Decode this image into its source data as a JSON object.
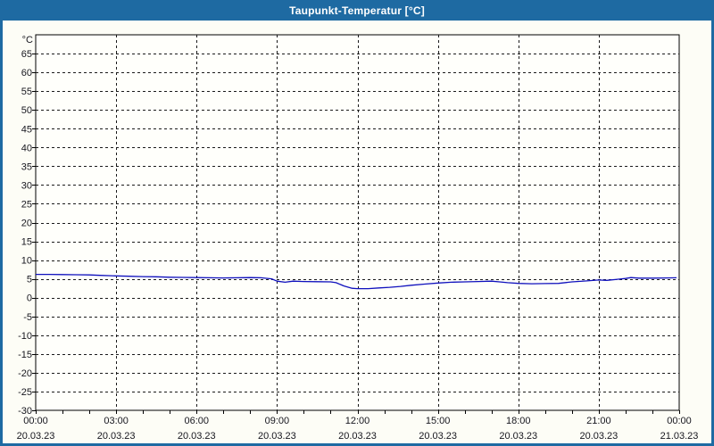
{
  "window": {
    "title": "Taupunkt-Temperatur [°C]"
  },
  "colors": {
    "titlebar_bg": "#1e6aa2",
    "frame": "#1e6aa2",
    "title_text": "#ffffff",
    "content_bg": "#fdfdf6",
    "plot_bg": "#fffffb",
    "plot_border": "#000000",
    "gridline": "#1a1a1a",
    "axis_text": "#16161e",
    "series_line": "#0f10bd"
  },
  "chart_data": {
    "type": "line",
    "title": "Taupunkt-Temperatur [°C]",
    "ylabel": "°C",
    "xlabel": "",
    "ylim": [
      -30,
      70
    ],
    "y_tick_step": 5,
    "y_tick_labels": [
      "65",
      "60",
      "55",
      "50",
      "45",
      "40",
      "35",
      "30",
      "25",
      "20",
      "15",
      "10",
      "5",
      "0",
      "-5",
      "-10",
      "-15",
      "-20",
      "-25",
      "-30"
    ],
    "grid": "dashed",
    "legend_position": "none",
    "x_axis": {
      "hours_span": 24,
      "minor_tick_every_hours": 1,
      "major_every_hours": 3,
      "major_ticks": [
        {
          "time": "00:00",
          "date": "20.03.23"
        },
        {
          "time": "03:00",
          "date": "20.03.23"
        },
        {
          "time": "06:00",
          "date": "20.03.23"
        },
        {
          "time": "09:00",
          "date": "20.03.23"
        },
        {
          "time": "12:00",
          "date": "20.03.23"
        },
        {
          "time": "15:00",
          "date": "20.03.23"
        },
        {
          "time": "18:00",
          "date": "20.03.23"
        },
        {
          "time": "21:00",
          "date": "20.03.23"
        },
        {
          "time": "00:00",
          "date": "21.03.23"
        }
      ]
    },
    "series": [
      {
        "name": "Taupunkt-Temperatur",
        "unit": "°C",
        "color": "#0f10bd",
        "points": [
          [
            0.0,
            6.2
          ],
          [
            0.5,
            6.2
          ],
          [
            1.0,
            6.15
          ],
          [
            1.5,
            6.1
          ],
          [
            2.0,
            6.05
          ],
          [
            2.4,
            5.95
          ],
          [
            3.0,
            5.8
          ],
          [
            3.5,
            5.7
          ],
          [
            4.0,
            5.6
          ],
          [
            4.5,
            5.55
          ],
          [
            5.0,
            5.45
          ],
          [
            5.5,
            5.4
          ],
          [
            6.0,
            5.35
          ],
          [
            6.5,
            5.3
          ],
          [
            7.0,
            5.25
          ],
          [
            7.5,
            5.3
          ],
          [
            8.0,
            5.35
          ],
          [
            8.4,
            5.3
          ],
          [
            8.8,
            5.0
          ],
          [
            9.0,
            4.4
          ],
          [
            9.3,
            4.1
          ],
          [
            9.6,
            4.4
          ],
          [
            10.0,
            4.3
          ],
          [
            10.5,
            4.25
          ],
          [
            11.0,
            4.2
          ],
          [
            11.2,
            4.0
          ],
          [
            11.5,
            3.1
          ],
          [
            11.8,
            2.5
          ],
          [
            12.0,
            2.4
          ],
          [
            12.4,
            2.4
          ],
          [
            12.8,
            2.6
          ],
          [
            13.2,
            2.75
          ],
          [
            13.6,
            3.0
          ],
          [
            14.0,
            3.3
          ],
          [
            14.5,
            3.6
          ],
          [
            15.0,
            3.9
          ],
          [
            15.5,
            4.1
          ],
          [
            16.0,
            4.2
          ],
          [
            16.5,
            4.3
          ],
          [
            17.0,
            4.4
          ],
          [
            17.3,
            4.2
          ],
          [
            17.6,
            4.0
          ],
          [
            18.0,
            3.8
          ],
          [
            18.5,
            3.7
          ],
          [
            19.0,
            3.75
          ],
          [
            19.5,
            3.8
          ],
          [
            20.0,
            4.2
          ],
          [
            20.5,
            4.45
          ],
          [
            21.0,
            4.7
          ],
          [
            21.3,
            4.6
          ],
          [
            21.7,
            4.9
          ],
          [
            22.0,
            5.1
          ],
          [
            22.2,
            5.35
          ],
          [
            22.5,
            5.2
          ],
          [
            23.0,
            5.2
          ],
          [
            23.5,
            5.25
          ],
          [
            23.9,
            5.3
          ]
        ]
      }
    ]
  }
}
